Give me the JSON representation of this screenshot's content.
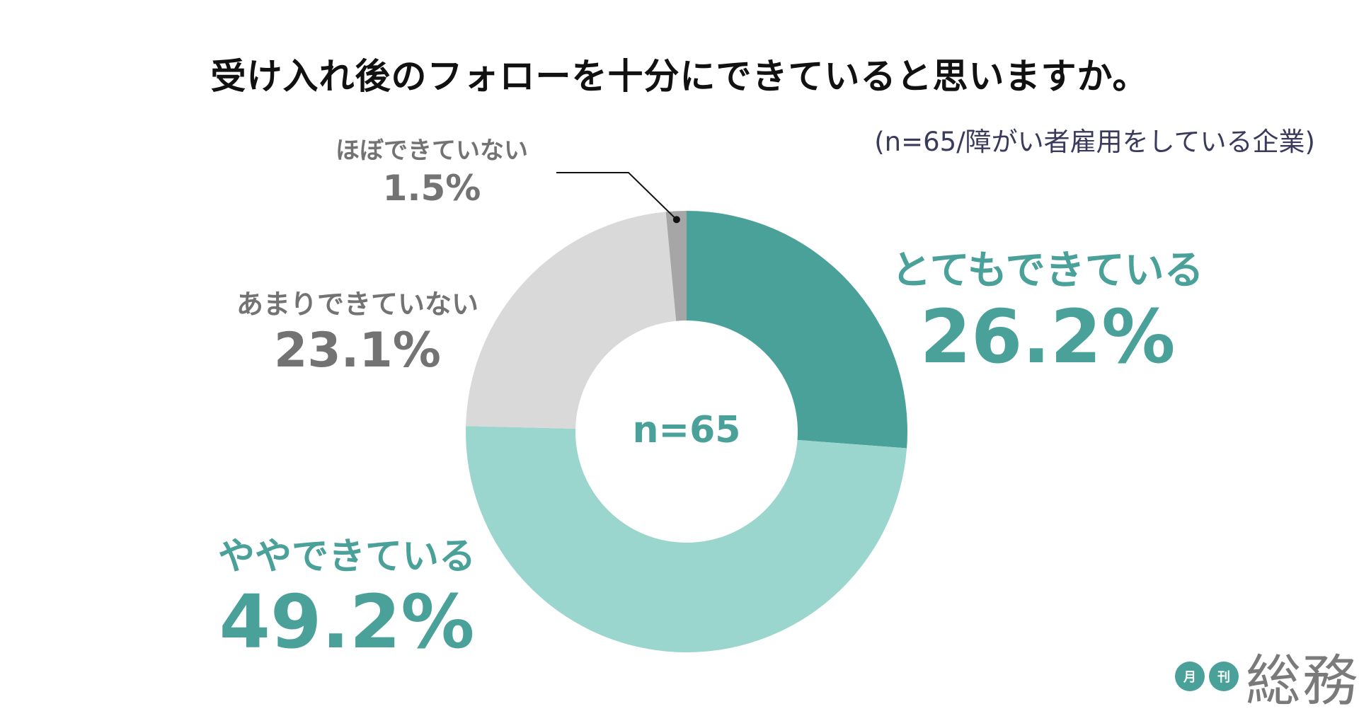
{
  "title": "受け入れ後のフォローを十分にできていると思いますか。",
  "subtitle": "(n=65/障がい者雇用をしている企業)",
  "logo": {
    "badge_1": "月",
    "badge_2": "刊",
    "word": "総務"
  },
  "chart_data": {
    "type": "pie",
    "center_label": "n=65",
    "series": [
      {
        "values": [
          26.2,
          49.2,
          23.1,
          1.5
        ]
      }
    ],
    "categories": [
      "とてもできている",
      "ややできている",
      "あまりできていない",
      "ほぼできていない"
    ],
    "labels": [
      {
        "name": "とてもできている",
        "value": "26.2%"
      },
      {
        "name": "ややできている",
        "value": "49.2%"
      },
      {
        "name": "あまりできていない",
        "value": "23.1%"
      },
      {
        "name": "ほぼできていない",
        "value": "1.5%"
      }
    ],
    "colors": [
      "#4aa199",
      "#9bd6ce",
      "#d9d9d9",
      "#a6a6a6"
    ],
    "label_colors": [
      "#4aa199",
      "#4aa199",
      "#737373",
      "#737373"
    ],
    "start": "12 o'clock",
    "direction": "clockwise",
    "donut": true
  }
}
